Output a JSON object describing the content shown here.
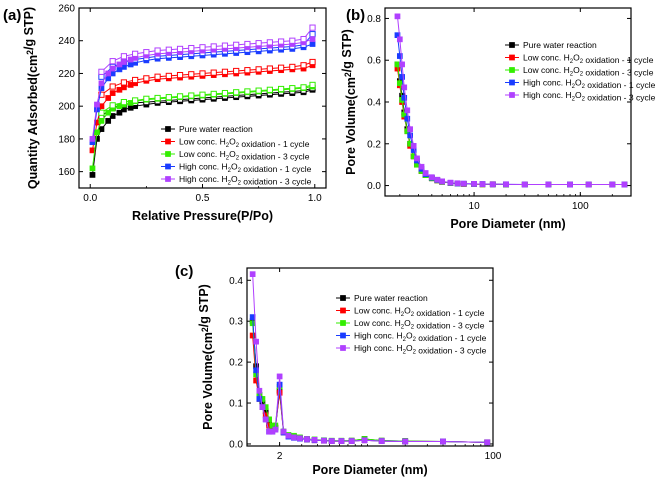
{
  "colors": {
    "pure": "#000000",
    "low1": "#ff0000",
    "low3": "#33ee00",
    "high1": "#1a3cff",
    "high3": "#b040ff"
  },
  "legend_text": {
    "pure": "Pure water reaction",
    "low1": "Low conc. H2O2 oxidation - 1 cycle",
    "low3": "Low conc. H2O2 oxidation - 3 cycle",
    "high1": "High conc. H2O2 oxidation - 1 cycle",
    "high3": "High conc. H2O2 oxidation - 3 cycle"
  },
  "chart_data": [
    {
      "panel": "(a)",
      "type": "line",
      "xlabel": "Relative Pressure(P/Po)",
      "ylabel": "Quantity Adsorbed(cm²/g STP)",
      "xlim": [
        -0.05,
        1.05
      ],
      "ylim": [
        150,
        260
      ],
      "xticks": [
        "0.0",
        "0.5",
        "1.0"
      ],
      "yticks": [
        "160",
        "180",
        "200",
        "220",
        "240",
        "260"
      ],
      "legend_position": "bottom-right",
      "x_ads": [
        0.01,
        0.03,
        0.05,
        0.08,
        0.1,
        0.13,
        0.15,
        0.18,
        0.2,
        0.25,
        0.3,
        0.35,
        0.4,
        0.45,
        0.5,
        0.55,
        0.6,
        0.65,
        0.7,
        0.75,
        0.8,
        0.85,
        0.9,
        0.95,
        0.99
      ],
      "x_des": [
        0.99,
        0.95,
        0.9,
        0.85,
        0.8,
        0.75,
        0.7,
        0.65,
        0.6,
        0.55,
        0.5,
        0.45,
        0.4,
        0.35,
        0.3,
        0.25,
        0.2,
        0.15,
        0.1,
        0.05
      ],
      "series": [
        {
          "key": "pure",
          "name": "Pure water reaction",
          "ads": [
            158,
            180,
            186,
            191,
            194,
            196,
            198,
            199,
            200,
            201,
            202,
            202.5,
            203,
            203.5,
            204,
            204.5,
            205,
            205.5,
            206,
            206.5,
            207,
            207.5,
            208,
            208.5,
            210
          ],
          "des": [
            211,
            209.5,
            209,
            208.5,
            208,
            207.5,
            207,
            206.5,
            206,
            205.5,
            205,
            204.5,
            204,
            203.5,
            203,
            202.5,
            202,
            201,
            199,
            194
          ]
        },
        {
          "key": "low1",
          "name": "Low conc. H2O2 oxidation - 1 cycle",
          "ads": [
            173,
            190,
            200,
            205,
            208,
            210,
            211.5,
            213,
            214,
            215.5,
            216.5,
            217,
            217.5,
            218,
            218.5,
            219,
            219.5,
            220,
            220.5,
            221,
            221.5,
            222,
            222.5,
            223,
            225
          ],
          "des": [
            227,
            225,
            224,
            223.5,
            223,
            222.5,
            222,
            221.5,
            221,
            220.5,
            220,
            219.5,
            219,
            218.5,
            218,
            217,
            216,
            214.5,
            212,
            207
          ]
        },
        {
          "key": "low3",
          "name": "Low conc. H2O2 oxidation - 3 cycle",
          "ads": [
            162,
            184,
            191,
            196,
            198.5,
            200,
            201,
            202,
            203,
            204,
            204.5,
            205,
            205.5,
            206,
            206.5,
            207,
            207.5,
            208,
            208.5,
            209,
            209.5,
            210,
            210.5,
            211,
            212
          ],
          "des": [
            213,
            211.5,
            211,
            210.5,
            210,
            209.5,
            209,
            208.5,
            208,
            207.5,
            207,
            206.5,
            206,
            205.5,
            205,
            204.5,
            203.5,
            202.5,
            200.5,
            196
          ]
        },
        {
          "key": "high1",
          "name": "High conc. H2O2 oxidation - 1 cycle",
          "ads": [
            178,
            198,
            211,
            217,
            220,
            222.5,
            224,
            225.5,
            226.5,
            228,
            229,
            229.5,
            230,
            230.5,
            231,
            231.5,
            232,
            232.5,
            233,
            233.5,
            234,
            234.5,
            235,
            236,
            238
          ],
          "des": [
            244,
            237.5,
            236.5,
            236,
            235.5,
            235,
            234.5,
            234,
            233.5,
            233,
            232.5,
            232,
            231.5,
            231,
            230.5,
            229.5,
            228.5,
            227,
            224,
            218
          ]
        },
        {
          "key": "high3",
          "name": "High conc. H2O2 oxidation - 3 cycle",
          "ads": [
            180,
            201,
            214,
            220,
            223,
            225.5,
            227,
            228.5,
            229.5,
            231,
            232,
            232.5,
            233,
            233.5,
            234,
            234.5,
            235,
            235.5,
            236,
            236.5,
            237,
            237.5,
            238,
            239,
            241
          ],
          "des": [
            248,
            241,
            240,
            239.5,
            239,
            238.5,
            238,
            237.5,
            237,
            236.5,
            236,
            235.5,
            235,
            234.5,
            234,
            233,
            232,
            230.5,
            227.5,
            221
          ]
        }
      ]
    },
    {
      "panel": "(b)",
      "type": "line",
      "xscale": "log",
      "xlabel": "Pore Diameter (nm)",
      "ylabel": "Pore Volume(cm²/g STP)",
      "xlim": [
        1.45,
        300
      ],
      "ylim": [
        -0.05,
        0.85
      ],
      "xticks": [
        "10",
        "100"
      ],
      "yticks": [
        "0.0",
        "0.2",
        "0.4",
        "0.6",
        "0.8"
      ],
      "legend_position": "top-right",
      "x": [
        1.9,
        2.0,
        2.1,
        2.2,
        2.35,
        2.5,
        2.7,
        2.9,
        3.2,
        3.5,
        4,
        4.5,
        5,
        6,
        7,
        8,
        10,
        12,
        15,
        20,
        30,
        50,
        80,
        120,
        200,
        260
      ],
      "series": [
        {
          "key": "pure",
          "name": "Pure water reaction",
          "values": [
            0.58,
            0.5,
            0.43,
            0.35,
            0.27,
            0.2,
            0.14,
            0.1,
            0.07,
            0.05,
            0.035,
            0.025,
            0.018,
            0.012,
            0.01,
            0.008,
            0.007,
            0.006,
            0.006,
            0.005,
            0.005,
            0.005,
            0.005,
            0.005,
            0.005,
            0.005
          ]
        },
        {
          "key": "low1",
          "name": "Low conc. H2O2 oxidation - 1 cycle",
          "values": [
            0.56,
            0.48,
            0.4,
            0.33,
            0.26,
            0.19,
            0.14,
            0.1,
            0.07,
            0.05,
            0.035,
            0.025,
            0.018,
            0.012,
            0.01,
            0.008,
            0.007,
            0.006,
            0.006,
            0.005,
            0.005,
            0.005,
            0.005,
            0.005,
            0.005,
            0.005
          ]
        },
        {
          "key": "low3",
          "name": "Low conc. H2O2 oxidation - 3 cycle",
          "values": [
            0.58,
            0.49,
            0.41,
            0.34,
            0.26,
            0.2,
            0.14,
            0.1,
            0.07,
            0.05,
            0.035,
            0.025,
            0.018,
            0.012,
            0.01,
            0.008,
            0.007,
            0.006,
            0.006,
            0.005,
            0.005,
            0.005,
            0.005,
            0.005,
            0.005,
            0.005
          ]
        },
        {
          "key": "high1",
          "name": "High conc. H2O2 oxidation - 1 cycle",
          "values": [
            0.72,
            0.62,
            0.52,
            0.42,
            0.32,
            0.24,
            0.17,
            0.12,
            0.08,
            0.055,
            0.038,
            0.027,
            0.02,
            0.013,
            0.01,
            0.009,
            0.008,
            0.007,
            0.006,
            0.006,
            0.005,
            0.005,
            0.005,
            0.005,
            0.005,
            0.005
          ]
        },
        {
          "key": "high3",
          "name": "High conc. H2O2 oxidation - 3 cycle",
          "values": [
            0.81,
            0.7,
            0.58,
            0.47,
            0.36,
            0.27,
            0.19,
            0.13,
            0.09,
            0.06,
            0.04,
            0.028,
            0.02,
            0.014,
            0.011,
            0.009,
            0.008,
            0.007,
            0.006,
            0.006,
            0.005,
            0.005,
            0.005,
            0.005,
            0.005,
            0.005
          ]
        }
      ]
    },
    {
      "panel": "(c)",
      "type": "line",
      "xscale": "log",
      "xlabel": "Pore Diameter (nm)",
      "ylabel": "Pore Volume(cm²/g STP)",
      "xlim": [
        1.1,
        100
      ],
      "ylim": [
        -0.005,
        0.43
      ],
      "xticks": [
        "2",
        "100"
      ],
      "yticks": [
        "0.0",
        "0.1",
        "0.2",
        "0.3",
        "0.4"
      ],
      "legend_position": "top-right",
      "x": [
        1.22,
        1.3,
        1.38,
        1.46,
        1.55,
        1.65,
        1.75,
        1.85,
        2.0,
        2.15,
        2.35,
        2.6,
        2.9,
        3.3,
        3.8,
        4.5,
        5.2,
        6.2,
        7.5,
        9.5,
        13,
        20,
        40,
        90
      ],
      "series": [
        {
          "key": "pure",
          "name": "Pure water reaction",
          "values": [
            0.3,
            0.19,
            0.12,
            0.1,
            0.08,
            0.05,
            0.04,
            0.04,
            0.13,
            0.03,
            0.02,
            0.018,
            0.015,
            0.012,
            0.01,
            0.008,
            0.007,
            0.007,
            0.008,
            0.012,
            0.008,
            0.007,
            0.006,
            0.004
          ]
        },
        {
          "key": "low1",
          "name": "Low conc. H2O2 oxidation - 1 cycle",
          "values": [
            0.265,
            0.155,
            0.11,
            0.09,
            0.07,
            0.045,
            0.04,
            0.04,
            0.125,
            0.028,
            0.02,
            0.016,
            0.013,
            0.011,
            0.009,
            0.008,
            0.007,
            0.007,
            0.007,
            0.009,
            0.007,
            0.006,
            0.006,
            0.004
          ]
        },
        {
          "key": "low3",
          "name": "Low conc. H2O2 oxidation - 3 cycle",
          "values": [
            0.295,
            0.17,
            0.12,
            0.11,
            0.09,
            0.06,
            0.045,
            0.045,
            0.14,
            0.03,
            0.022,
            0.02,
            0.016,
            0.012,
            0.011,
            0.009,
            0.008,
            0.008,
            0.008,
            0.012,
            0.008,
            0.007,
            0.006,
            0.004
          ]
        },
        {
          "key": "high1",
          "name": "High conc. H2O2 oxidation - 1 cycle",
          "values": [
            0.31,
            0.18,
            0.11,
            0.09,
            0.06,
            0.03,
            0.03,
            0.035,
            0.145,
            0.028,
            0.018,
            0.015,
            0.013,
            0.011,
            0.009,
            0.008,
            0.007,
            0.007,
            0.007,
            0.009,
            0.007,
            0.006,
            0.006,
            0.004
          ]
        },
        {
          "key": "high3",
          "name": "High conc. H2O2 oxidation - 3 cycle",
          "values": [
            0.415,
            0.25,
            0.13,
            0.09,
            0.06,
            0.03,
            0.03,
            0.035,
            0.165,
            0.03,
            0.02,
            0.016,
            0.014,
            0.012,
            0.01,
            0.008,
            0.007,
            0.007,
            0.007,
            0.009,
            0.007,
            0.006,
            0.006,
            0.004
          ]
        }
      ]
    }
  ]
}
